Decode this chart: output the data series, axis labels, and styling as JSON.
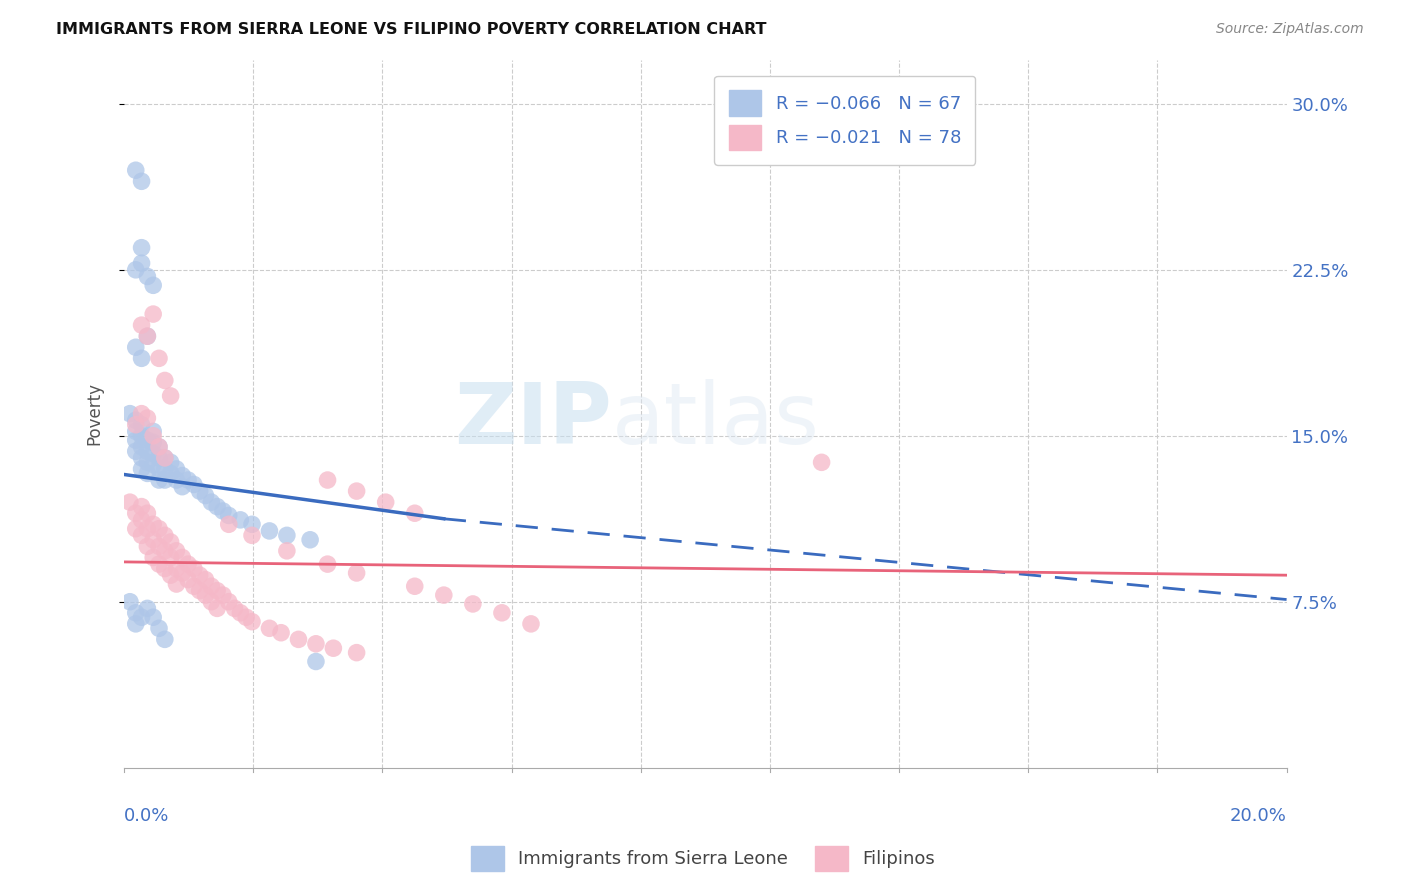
{
  "title": "IMMIGRANTS FROM SIERRA LEONE VS FILIPINO POVERTY CORRELATION CHART",
  "source": "Source: ZipAtlas.com",
  "ylabel": "Poverty",
  "ytick_labels": [
    "7.5%",
    "15.0%",
    "22.5%",
    "30.0%"
  ],
  "ytick_values": [
    0.075,
    0.15,
    0.225,
    0.3
  ],
  "xlim": [
    0.0,
    0.2
  ],
  "ylim": [
    0.0,
    0.32
  ],
  "legend_label1": "Immigrants from Sierra Leone",
  "legend_label2": "Filipinos",
  "watermark_zip": "ZIP",
  "watermark_atlas": "atlas",
  "blue_color": "#aec6e8",
  "pink_color": "#f5b8c8",
  "blue_line_color": "#3a6bbf",
  "pink_line_color": "#e8637a",
  "blue_scatter": [
    [
      0.001,
      0.16
    ],
    [
      0.002,
      0.157
    ],
    [
      0.002,
      0.152
    ],
    [
      0.002,
      0.148
    ],
    [
      0.002,
      0.143
    ],
    [
      0.003,
      0.155
    ],
    [
      0.003,
      0.15
    ],
    [
      0.003,
      0.145
    ],
    [
      0.003,
      0.14
    ],
    [
      0.003,
      0.135
    ],
    [
      0.004,
      0.148
    ],
    [
      0.004,
      0.143
    ],
    [
      0.004,
      0.138
    ],
    [
      0.004,
      0.133
    ],
    [
      0.005,
      0.152
    ],
    [
      0.005,
      0.147
    ],
    [
      0.005,
      0.142
    ],
    [
      0.005,
      0.137
    ],
    [
      0.006,
      0.145
    ],
    [
      0.006,
      0.14
    ],
    [
      0.006,
      0.135
    ],
    [
      0.006,
      0.13
    ],
    [
      0.007,
      0.14
    ],
    [
      0.007,
      0.135
    ],
    [
      0.007,
      0.13
    ],
    [
      0.008,
      0.138
    ],
    [
      0.008,
      0.133
    ],
    [
      0.009,
      0.135
    ],
    [
      0.009,
      0.13
    ],
    [
      0.01,
      0.132
    ],
    [
      0.01,
      0.127
    ],
    [
      0.011,
      0.13
    ],
    [
      0.012,
      0.128
    ],
    [
      0.013,
      0.125
    ],
    [
      0.014,
      0.123
    ],
    [
      0.015,
      0.12
    ],
    [
      0.016,
      0.118
    ],
    [
      0.017,
      0.116
    ],
    [
      0.018,
      0.114
    ],
    [
      0.02,
      0.112
    ],
    [
      0.022,
      0.11
    ],
    [
      0.025,
      0.107
    ],
    [
      0.028,
      0.105
    ],
    [
      0.032,
      0.103
    ],
    [
      0.002,
      0.225
    ],
    [
      0.003,
      0.235
    ],
    [
      0.003,
      0.228
    ],
    [
      0.004,
      0.222
    ],
    [
      0.005,
      0.218
    ],
    [
      0.002,
      0.27
    ],
    [
      0.003,
      0.265
    ],
    [
      0.002,
      0.19
    ],
    [
      0.003,
      0.185
    ],
    [
      0.004,
      0.195
    ],
    [
      0.001,
      0.075
    ],
    [
      0.002,
      0.07
    ],
    [
      0.002,
      0.065
    ],
    [
      0.003,
      0.068
    ],
    [
      0.004,
      0.072
    ],
    [
      0.005,
      0.068
    ],
    [
      0.006,
      0.063
    ],
    [
      0.007,
      0.058
    ],
    [
      0.033,
      0.048
    ]
  ],
  "pink_scatter": [
    [
      0.001,
      0.12
    ],
    [
      0.002,
      0.115
    ],
    [
      0.002,
      0.108
    ],
    [
      0.003,
      0.118
    ],
    [
      0.003,
      0.112
    ],
    [
      0.003,
      0.105
    ],
    [
      0.004,
      0.115
    ],
    [
      0.004,
      0.108
    ],
    [
      0.004,
      0.1
    ],
    [
      0.005,
      0.11
    ],
    [
      0.005,
      0.103
    ],
    [
      0.005,
      0.095
    ],
    [
      0.006,
      0.108
    ],
    [
      0.006,
      0.1
    ],
    [
      0.006,
      0.092
    ],
    [
      0.007,
      0.105
    ],
    [
      0.007,
      0.098
    ],
    [
      0.007,
      0.09
    ],
    [
      0.008,
      0.102
    ],
    [
      0.008,
      0.095
    ],
    [
      0.008,
      0.087
    ],
    [
      0.009,
      0.098
    ],
    [
      0.009,
      0.09
    ],
    [
      0.009,
      0.083
    ],
    [
      0.01,
      0.095
    ],
    [
      0.01,
      0.088
    ],
    [
      0.011,
      0.092
    ],
    [
      0.011,
      0.085
    ],
    [
      0.012,
      0.09
    ],
    [
      0.012,
      0.082
    ],
    [
      0.013,
      0.087
    ],
    [
      0.013,
      0.08
    ],
    [
      0.014,
      0.085
    ],
    [
      0.014,
      0.078
    ],
    [
      0.015,
      0.082
    ],
    [
      0.015,
      0.075
    ],
    [
      0.016,
      0.08
    ],
    [
      0.016,
      0.072
    ],
    [
      0.017,
      0.078
    ],
    [
      0.018,
      0.075
    ],
    [
      0.019,
      0.072
    ],
    [
      0.02,
      0.07
    ],
    [
      0.021,
      0.068
    ],
    [
      0.022,
      0.066
    ],
    [
      0.025,
      0.063
    ],
    [
      0.027,
      0.061
    ],
    [
      0.03,
      0.058
    ],
    [
      0.033,
      0.056
    ],
    [
      0.036,
      0.054
    ],
    [
      0.04,
      0.052
    ],
    [
      0.002,
      0.155
    ],
    [
      0.003,
      0.16
    ],
    [
      0.004,
      0.158
    ],
    [
      0.005,
      0.15
    ],
    [
      0.006,
      0.145
    ],
    [
      0.007,
      0.14
    ],
    [
      0.003,
      0.2
    ],
    [
      0.004,
      0.195
    ],
    [
      0.005,
      0.205
    ],
    [
      0.006,
      0.185
    ],
    [
      0.007,
      0.175
    ],
    [
      0.008,
      0.168
    ],
    [
      0.018,
      0.11
    ],
    [
      0.022,
      0.105
    ],
    [
      0.028,
      0.098
    ],
    [
      0.035,
      0.092
    ],
    [
      0.04,
      0.088
    ],
    [
      0.05,
      0.082
    ],
    [
      0.055,
      0.078
    ],
    [
      0.06,
      0.074
    ],
    [
      0.065,
      0.07
    ],
    [
      0.07,
      0.065
    ],
    [
      0.12,
      0.138
    ],
    [
      0.035,
      0.13
    ],
    [
      0.04,
      0.125
    ],
    [
      0.045,
      0.12
    ],
    [
      0.05,
      0.115
    ]
  ],
  "blue_line_solid": [
    [
      0.0,
      0.1325
    ],
    [
      0.055,
      0.1125
    ]
  ],
  "blue_line_dash": [
    [
      0.055,
      0.1125
    ],
    [
      0.2,
      0.076
    ]
  ],
  "pink_line": [
    [
      0.0,
      0.093
    ],
    [
      0.2,
      0.087
    ]
  ]
}
